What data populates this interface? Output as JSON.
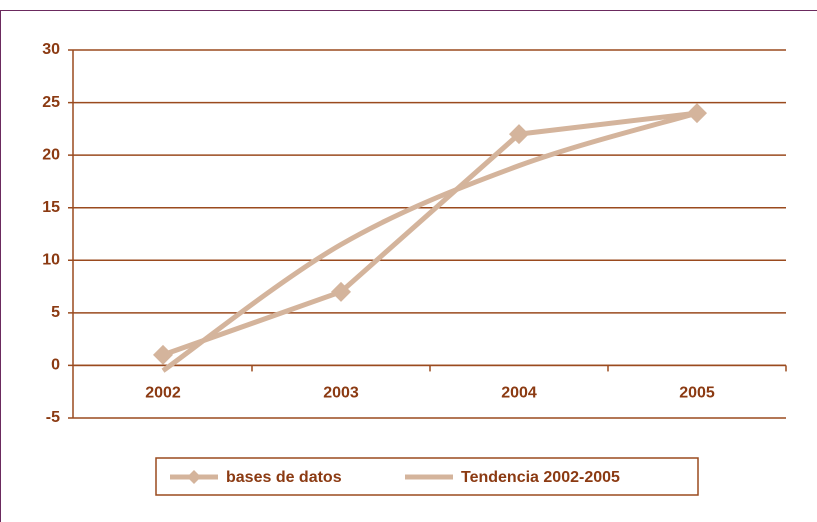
{
  "chart_data": {
    "type": "line",
    "categories": [
      "2002",
      "2003",
      "2004",
      "2005"
    ],
    "series": [
      {
        "name": "bases de datos",
        "color": "#d4b49c",
        "values": [
          1,
          7,
          22,
          24
        ],
        "marker": "diamond"
      },
      {
        "name": "Tendencia 2002-2005",
        "color": "#d4b49c",
        "values": [
          -0.5,
          11.5,
          19,
          24
        ],
        "smooth": true
      }
    ],
    "ylim": [
      -5,
      30
    ],
    "yticks": [
      -5,
      0,
      5,
      10,
      15,
      20,
      25,
      30
    ],
    "grid": true,
    "legend": "bottom"
  }
}
